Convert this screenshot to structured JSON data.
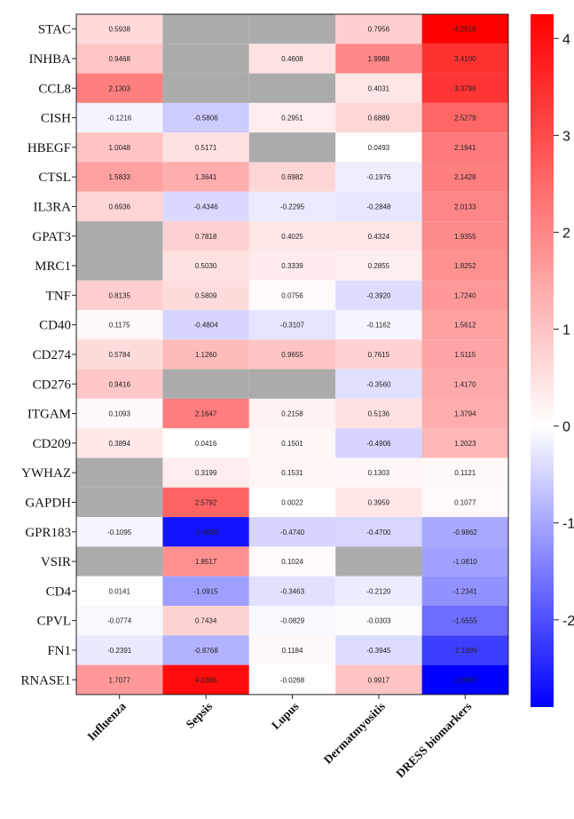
{
  "chart_data": {
    "type": "heatmap",
    "rows": [
      "STAC",
      "INHBA",
      "CCL8",
      "CISH",
      "HBEGF",
      "CTSL",
      "IL3RA",
      "GPAT3",
      "MRC1",
      "TNF",
      "CD40",
      "CD274",
      "CD276",
      "ITGAM",
      "CD209",
      "YWHAZ",
      "GAPDH",
      "GPR183",
      "VSIR",
      "CD4",
      "CPVL",
      "FN1",
      "RNASE1"
    ],
    "columns": [
      "Influenza",
      "Sepsis",
      "Lupus",
      "Dermatmyositis",
      "DRESS biomarkers"
    ],
    "values": [
      [
        "0.5938",
        null,
        null,
        "0.7956",
        "4.2518"
      ],
      [
        "0.9468",
        null,
        "0.4608",
        "1.9988",
        "3.4100"
      ],
      [
        "2.1303",
        null,
        null,
        "0.4031",
        "3.3796"
      ],
      [
        "-0.1216",
        "-0.5806",
        "0.2951",
        "0.6889",
        "2.5279"
      ],
      [
        "1.0048",
        "0.5171",
        null,
        "0.0493",
        "2.1941"
      ],
      [
        "1.5833",
        "1.3641",
        "0.6982",
        "-0.1976",
        "2.1428"
      ],
      [
        "0.6936",
        "-0.4346",
        "-0.2295",
        "-0.2848",
        "2.0133"
      ],
      [
        null,
        "0.7818",
        "0.4025",
        "0.4324",
        "1.9355"
      ],
      [
        null,
        "0.5030",
        "0.3339",
        "0.2855",
        "1.8252"
      ],
      [
        "0.8135",
        "0.5809",
        "0.0756",
        "-0.3920",
        "1.7240"
      ],
      [
        "0.1175",
        "-0.4804",
        "-0.3107",
        "-0.1162",
        "1.5612"
      ],
      [
        "0.5784",
        "1.1260",
        "0.9655",
        "0.7615",
        "1.5115"
      ],
      [
        "0.9416",
        null,
        null,
        "-0.3560",
        "1.4170"
      ],
      [
        "0.1093",
        "2.1647",
        "0.2158",
        "0.5136",
        "1.3794"
      ],
      [
        "0.3894",
        "0.0416",
        "0.1501",
        "-0.4906",
        "1.2023"
      ],
      [
        null,
        "0.3199",
        "0.1531",
        "0.1303",
        "0.1121"
      ],
      [
        null,
        "2.5792",
        "0.0022",
        "0.3959",
        "0.1077"
      ],
      [
        "-0.1095",
        "-2.6888",
        "-0.4740",
        "-0.4700",
        "-0.9862"
      ],
      [
        null,
        "1.8517",
        "0.1024",
        null,
        "-1.0810"
      ],
      [
        "0.0141",
        "-1.0915",
        "-0.3463",
        "-0.2120",
        "-1.2341"
      ],
      [
        "-0.0774",
        "0.7434",
        "-0.0829",
        "-0.0303",
        "-1.6555"
      ],
      [
        "-0.2391",
        "-0.8768",
        "0.1184",
        "-0.3945",
        "-2.1999"
      ],
      [
        "1.7077",
        "4.0386",
        "-0.0268",
        "0.9917",
        "-2.8887"
      ]
    ],
    "colorscale": {
      "min": -2.9,
      "max": 4.25,
      "low_color": "#0000ff",
      "mid_color": "#ffffff",
      "high_color": "#ff0000",
      "missing_color": "#ababab",
      "ticks": [
        "4",
        "3",
        "2",
        "1",
        "0",
        "-1",
        "-2"
      ],
      "tick_values": [
        4,
        3,
        2,
        1,
        0,
        -1,
        -2
      ]
    },
    "title": "",
    "xlabel": "",
    "ylabel": ""
  }
}
